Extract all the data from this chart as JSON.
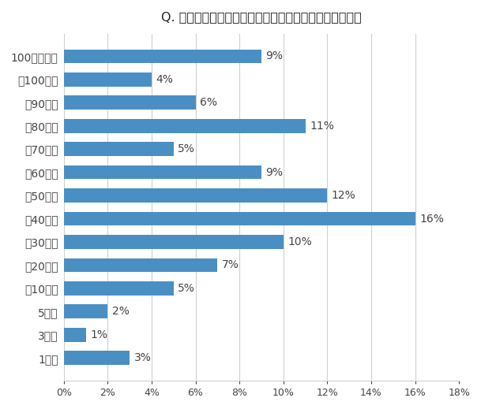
{
  "title": "Q. ブラック企業で働いていた時の月の平均残業時間は？",
  "categories": [
    "100時間以上",
    "～100時間",
    "～90時間",
    "～80時間",
    "～70時間",
    "～60時間",
    "～50時間",
    "～40時間",
    "～30時間",
    "～20時間",
    "～10時間",
    "5時間",
    "3時間",
    "1時間"
  ],
  "values": [
    9,
    4,
    6,
    11,
    5,
    9,
    12,
    16,
    10,
    7,
    5,
    2,
    1,
    3
  ],
  "bar_color": "#4a8fc4",
  "background_color": "#ffffff",
  "xlim": [
    0,
    18
  ],
  "xtick_values": [
    0,
    2,
    4,
    6,
    8,
    10,
    12,
    14,
    16,
    18
  ],
  "title_fontsize": 11.5,
  "label_fontsize": 10,
  "tick_fontsize": 9,
  "value_fontsize": 10
}
